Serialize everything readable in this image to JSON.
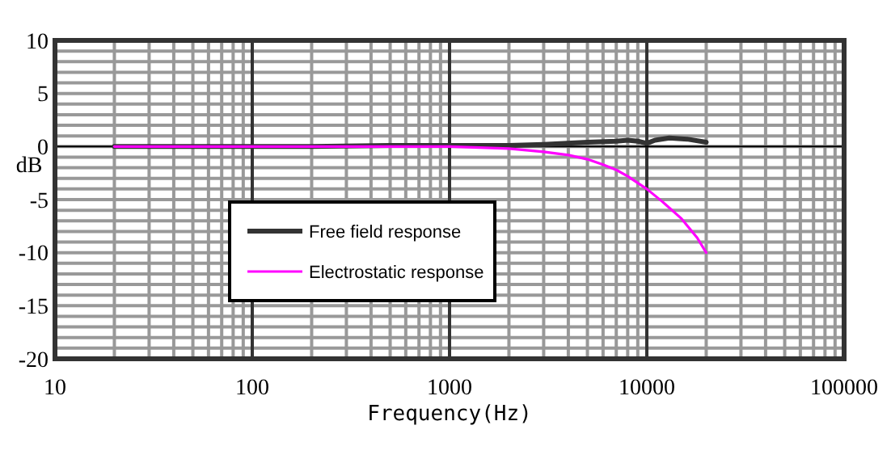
{
  "chart_data": {
    "type": "line",
    "xlabel": "Frequency(Hz)",
    "ylabel": "dB",
    "log": "x",
    "xlim": [
      10,
      100000
    ],
    "xticks": [
      10,
      100,
      1000,
      10000,
      100000
    ],
    "ylim": [
      -20,
      10
    ],
    "yticks": [
      -20,
      -15,
      -10,
      -5,
      0,
      5,
      10
    ],
    "grid": true,
    "legend": "left",
    "line_style": "solid",
    "ref_lines": [
      {
        "axis": "y",
        "value": 0,
        "color": "#000000"
      }
    ],
    "series": [
      {
        "name": "Free field response",
        "color": "#333333",
        "x": [
          20,
          50,
          100,
          200,
          500,
          1000,
          2000,
          3000,
          5000,
          7000,
          8000,
          9000,
          10000,
          11000,
          13000,
          16000,
          20000
        ],
        "values": [
          0,
          0,
          0,
          0,
          0.1,
          0.1,
          0.1,
          0.2,
          0.4,
          0.5,
          0.6,
          0.5,
          0.3,
          0.6,
          0.8,
          0.7,
          0.4
        ]
      },
      {
        "name": "Electrostatic response",
        "color": "#ff00ff",
        "x": [
          20,
          50,
          100,
          200,
          500,
          1000,
          2000,
          3000,
          4000,
          5000,
          6000,
          7000,
          8000,
          10000,
          12000,
          15000,
          18000,
          20000
        ],
        "values": [
          0,
          0,
          0,
          0,
          0,
          0,
          -0.2,
          -0.5,
          -0.8,
          -1.2,
          -1.7,
          -2.2,
          -2.8,
          -4,
          -5.2,
          -6.8,
          -8.6,
          -10
        ]
      }
    ]
  }
}
